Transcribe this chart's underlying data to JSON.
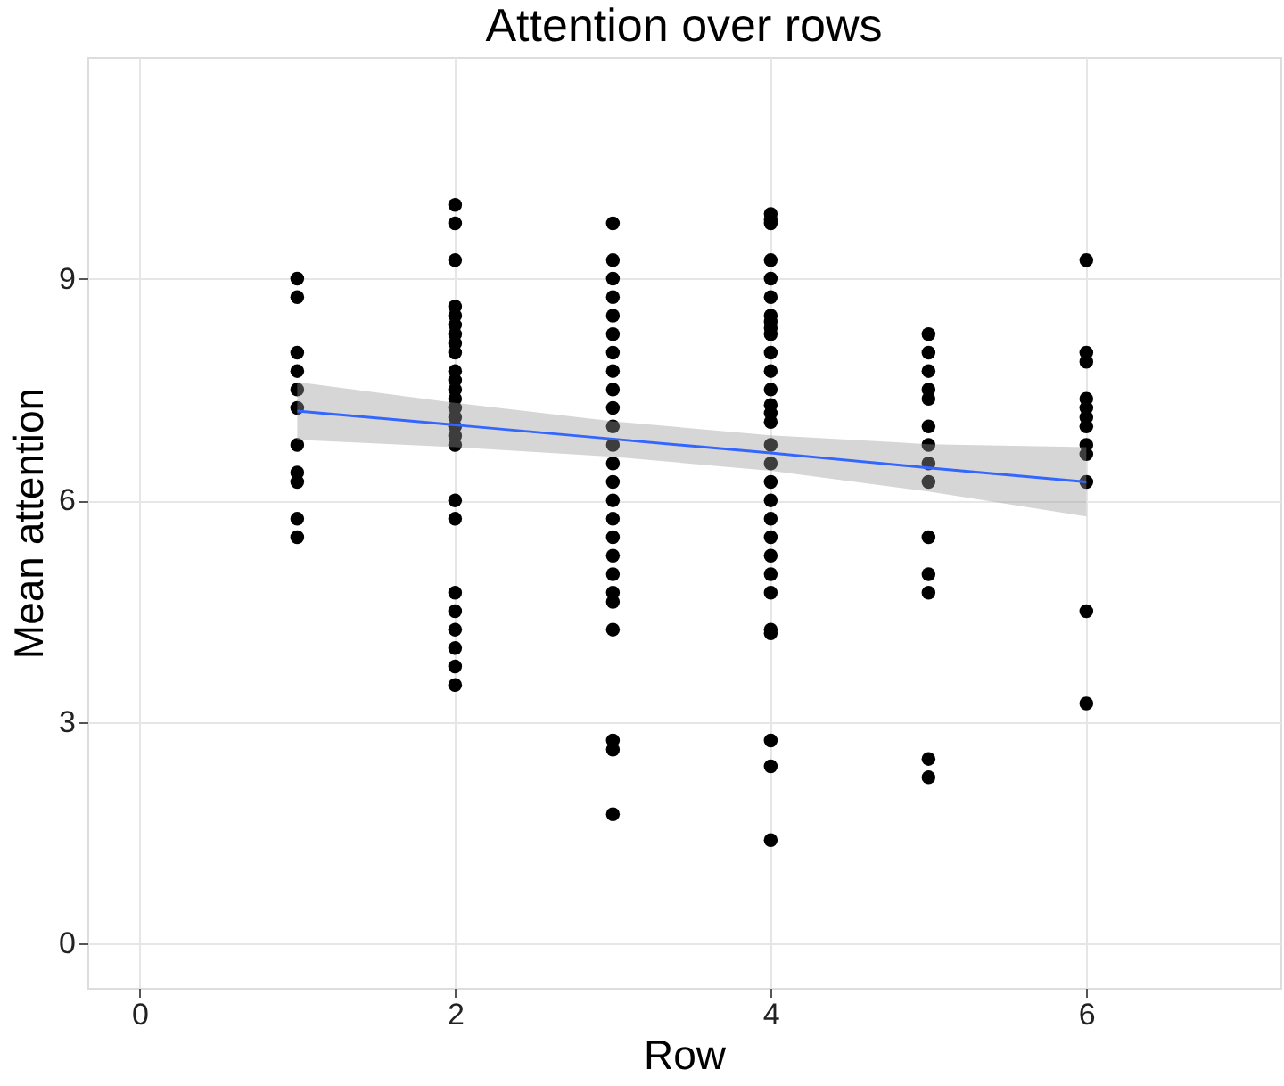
{
  "chart_data": {
    "type": "scatter",
    "title": "Attention over rows",
    "xlabel": "Row",
    "ylabel": "Mean attention",
    "xlim": [
      -0.33,
      7.23
    ],
    "ylim": [
      -0.6,
      12
    ],
    "xticks": [
      0,
      2,
      4,
      6
    ],
    "yticks": [
      0,
      3,
      6,
      9
    ],
    "grid": true,
    "series": [
      {
        "type": "scatter",
        "marker": "circle",
        "color": "#000000",
        "x": [
          1,
          1,
          1,
          1,
          1,
          1,
          1,
          1,
          1,
          1,
          1,
          2,
          2,
          2,
          2,
          2,
          2,
          2,
          2,
          2,
          2,
          2,
          2,
          2,
          2,
          2,
          2,
          2,
          2,
          2,
          2,
          2,
          2,
          2,
          2,
          2,
          2,
          3,
          3,
          3,
          3,
          3,
          3,
          3,
          3,
          3,
          3,
          3,
          3,
          3,
          3,
          3,
          3,
          3,
          3,
          3,
          3,
          3,
          3,
          3,
          3,
          3,
          4,
          4,
          4,
          4,
          4,
          4,
          4,
          4,
          4,
          4,
          4,
          4,
          4,
          4,
          4,
          4,
          4,
          4,
          4,
          4,
          4,
          4,
          4,
          4,
          4,
          4,
          4,
          4,
          4,
          4,
          5,
          5,
          5,
          5,
          5,
          5,
          5,
          5,
          5,
          5,
          5,
          5,
          5,
          5,
          6,
          6,
          6,
          6,
          6,
          6,
          6,
          6,
          6,
          6,
          6,
          6
        ],
        "values": [
          9,
          8.75,
          8,
          7.75,
          7.5,
          7.25,
          6.75,
          6.375,
          6.25,
          5.75,
          5.5,
          10,
          9.75,
          9.25,
          8.625,
          8.5,
          8.375,
          8.25,
          8.125,
          8,
          7.75,
          7.625,
          7.5,
          7.375,
          7.25,
          7,
          6.75,
          6,
          5.75,
          4.75,
          4.5,
          4.25,
          4,
          3.75,
          3.5,
          6.875,
          7.125,
          9.75,
          9.25,
          9,
          8.75,
          8.5,
          8.25,
          8,
          7.75,
          7.5,
          7.25,
          7,
          6.75,
          6.5,
          6.25,
          6,
          5.75,
          5.5,
          5.25,
          5,
          4.75,
          4.625,
          4.25,
          2.75,
          2.625,
          1.75,
          9.875,
          9.8,
          9.75,
          9.25,
          9,
          8.75,
          8.5,
          8.42,
          8.33,
          8.25,
          8,
          7.75,
          7.5,
          7.29,
          7.18,
          7.06,
          6.75,
          6.5,
          6.25,
          6,
          5.75,
          5.5,
          5.25,
          5,
          4.75,
          4.25,
          4.2,
          2.75,
          2.4,
          1.4,
          8.25,
          8,
          7.75,
          7.5,
          7.375,
          7,
          6.75,
          6.5,
          6.25,
          5.5,
          5,
          4.75,
          2.5,
          2.25,
          9.25,
          8,
          7.875,
          7.375,
          7.25,
          7.125,
          7,
          6.75,
          6.625,
          6.25,
          4.5,
          3.25
        ]
      },
      {
        "type": "line",
        "color": "#3366ff",
        "x": [
          1,
          2,
          3,
          4,
          5,
          6
        ],
        "values": [
          7.21,
          7.02,
          6.83,
          6.64,
          6.44,
          6.25
        ],
        "lower": [
          6.82,
          6.72,
          6.59,
          6.4,
          6.12,
          5.78
        ],
        "upper": [
          7.6,
          7.32,
          7.07,
          6.88,
          6.76,
          6.72
        ]
      }
    ]
  }
}
